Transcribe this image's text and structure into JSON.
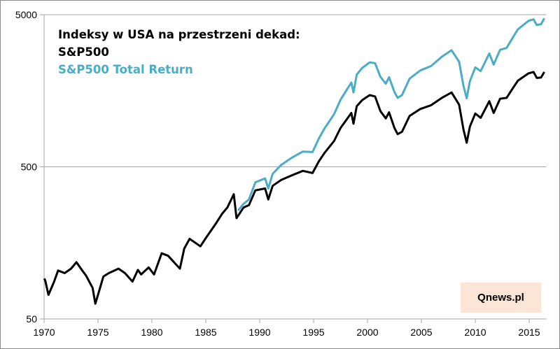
{
  "chart_data": {
    "type": "line",
    "title": "Indeksy w USA na przestrzeni dekad:",
    "xlabel": "",
    "ylabel": "",
    "yscale": "log",
    "ylim": [
      50,
      5000
    ],
    "xlim": [
      1970,
      2016.6
    ],
    "y_ticks": [
      "50",
      "500",
      "5000"
    ],
    "y_tick_values": [
      50,
      500,
      5000
    ],
    "x_ticks": [
      "1970",
      "1975",
      "1980",
      "1985",
      "1990",
      "1995",
      "2000",
      "2005",
      "2010",
      "2015"
    ],
    "x_tick_values": [
      1970,
      1975,
      1980,
      1985,
      1990,
      1995,
      2000,
      2005,
      2010,
      2015
    ],
    "grid": "horizontal at 500",
    "legend_placement": "top-left",
    "series": [
      {
        "name": "S&P500",
        "color": "#000000",
        "x": [
          1970.0,
          1970.1,
          1970.4,
          1970.9,
          1971.3,
          1971.9,
          1972.5,
          1973.0,
          1973.5,
          1973.9,
          1974.5,
          1974.75,
          1975.0,
          1975.5,
          1976.0,
          1976.9,
          1977.5,
          1978.2,
          1978.7,
          1979.0,
          1979.7,
          1980.2,
          1980.9,
          1981.5,
          1982.6,
          1983.0,
          1983.5,
          1984.5,
          1985.0,
          1985.9,
          1986.5,
          1987.0,
          1987.6,
          1987.85,
          1988.5,
          1989.0,
          1989.6,
          1990.5,
          1990.8,
          1991.2,
          1992.0,
          1993.0,
          1994.0,
          1994.9,
          1995.5,
          1996.0,
          1996.9,
          1997.5,
          1998.5,
          1998.7,
          1999.0,
          1999.5,
          2000.2,
          2000.7,
          2001.2,
          2001.7,
          2002.0,
          2002.5,
          2002.8,
          2003.2,
          2003.9,
          2004.9,
          2005.9,
          2006.9,
          2007.8,
          2008.5,
          2008.9,
          2009.2,
          2009.5,
          2010.0,
          2010.5,
          2011.3,
          2011.7,
          2012.3,
          2012.9,
          2013.5,
          2013.95,
          2014.5,
          2014.95,
          2015.4,
          2015.7,
          2016.1,
          2016.4
        ],
        "values": [
          92,
          90,
          72,
          87,
          104,
          100,
          107,
          118,
          105,
          96,
          80,
          63,
          72,
          95,
          100,
          107,
          100,
          88,
          105,
          98,
          109,
          98,
          135,
          130,
          107,
          145,
          168,
          150,
          170,
          210,
          245,
          270,
          330,
          230,
          270,
          280,
          350,
          360,
          305,
          375,
          410,
          440,
          470,
          455,
          545,
          615,
          740,
          900,
          1130,
          960,
          1250,
          1370,
          1480,
          1450,
          1160,
          1040,
          1140,
          900,
          820,
          850,
          1080,
          1200,
          1270,
          1420,
          1540,
          1280,
          880,
          720,
          920,
          1120,
          1050,
          1350,
          1130,
          1400,
          1420,
          1650,
          1840,
          1960,
          2060,
          2100,
          1920,
          1930,
          2100
        ]
      },
      {
        "name": "S&P500 Total Return",
        "color": "#4bacc6",
        "x": [
          1988.0,
          1988.5,
          1989.0,
          1989.6,
          1990.5,
          1990.8,
          1991.2,
          1992.0,
          1993.0,
          1994.0,
          1994.9,
          1995.5,
          1996.0,
          1996.9,
          1997.5,
          1998.5,
          1998.7,
          1999.0,
          1999.5,
          2000.2,
          2000.7,
          2001.2,
          2001.7,
          2002.0,
          2002.5,
          2002.8,
          2003.2,
          2003.9,
          2004.9,
          2005.9,
          2006.9,
          2007.8,
          2008.5,
          2008.9,
          2009.2,
          2009.5,
          2010.0,
          2010.5,
          2011.3,
          2011.7,
          2012.3,
          2012.9,
          2013.5,
          2013.95,
          2014.5,
          2014.95,
          2015.4,
          2015.7,
          2016.1,
          2016.4
        ],
        "values": [
          258,
          285,
          305,
          395,
          420,
          360,
          450,
          515,
          575,
          630,
          625,
          770,
          890,
          1110,
          1380,
          1790,
          1540,
          2020,
          2230,
          2430,
          2400,
          1950,
          1760,
          1940,
          1550,
          1420,
          1480,
          1900,
          2150,
          2300,
          2650,
          2920,
          2450,
          1700,
          1410,
          1830,
          2250,
          2130,
          2780,
          2350,
          2940,
          3020,
          3560,
          4000,
          4300,
          4560,
          4660,
          4280,
          4330,
          4730
        ]
      }
    ],
    "legend": [
      "S&P500",
      "S&P500 Total Return"
    ]
  },
  "watermark": "Qnews.pl"
}
